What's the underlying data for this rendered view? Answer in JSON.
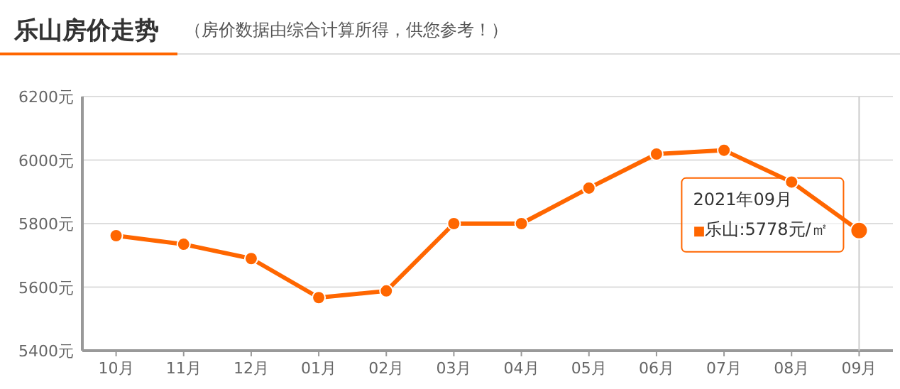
{
  "chart_data": {
    "type": "line",
    "title": "乐山房价走势",
    "subtitle": "（房价数据由综合计算所得，供您参考！）",
    "categories": [
      "10月",
      "11月",
      "12月",
      "01月",
      "02月",
      "03月",
      "04月",
      "05月",
      "06月",
      "07月",
      "08月",
      "09月"
    ],
    "series": [
      {
        "color": "#ff6600",
        "values": [
          5762,
          5735,
          5690,
          5567,
          5588,
          5800,
          5800,
          5912,
          6019,
          6031,
          5931,
          5778
        ]
      }
    ],
    "ylim": [
      5400,
      6200
    ],
    "yticks": [
      {
        "value": 5400,
        "label": "5400元"
      },
      {
        "value": 5600,
        "label": "5600元"
      },
      {
        "value": 5800,
        "label": "5800元"
      },
      {
        "value": 6000,
        "label": "6000元"
      },
      {
        "value": 6200,
        "label": "6200元"
      }
    ],
    "grid": "y",
    "marker": "circle",
    "line_style": "solid",
    "ref_lines": [
      {
        "axis": "x",
        "value": "09月",
        "color": "#cccccc"
      }
    ],
    "annotations": [
      "2021年09月",
      "■乐山:5778元/㎡"
    ]
  }
}
